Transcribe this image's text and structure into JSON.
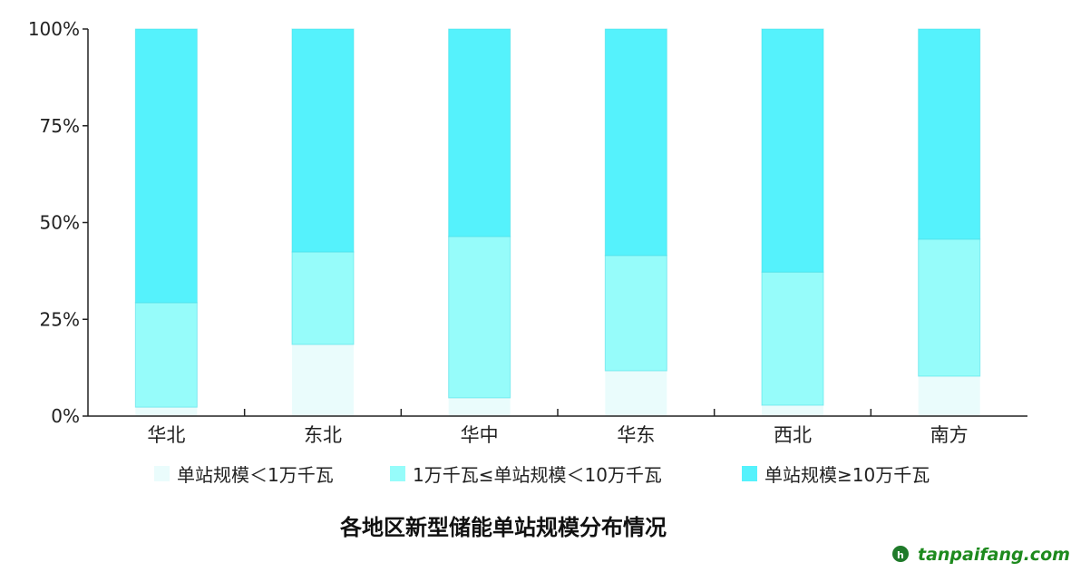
{
  "chart_data": {
    "type": "bar",
    "stacked": true,
    "title": "各地区新型储能单站规模分布情况",
    "xlabel": "",
    "ylabel": "",
    "ylim": [
      0,
      100
    ],
    "yticks": [
      "0%",
      "25%",
      "50%",
      "75%",
      "100%"
    ],
    "categories": [
      "华北",
      "东北",
      "华中",
      "华东",
      "西北",
      "南方"
    ],
    "series": [
      {
        "name": "单站规模＜1万千瓦",
        "color": "#EAFCFC",
        "values": [
          2.3,
          18.5,
          4.7,
          11.7,
          2.8,
          10.3
        ]
      },
      {
        "name": "1万千瓦≤单站规模＜10万千瓦",
        "color": "#96FCFA",
        "values": [
          27.0,
          23.9,
          41.7,
          29.8,
          34.4,
          35.4
        ]
      },
      {
        "name": "单站规模≥10万千瓦",
        "color": "#55F2FC",
        "values": [
          70.7,
          57.6,
          53.6,
          58.5,
          62.8,
          54.3
        ]
      }
    ],
    "legend_position": "bottom",
    "grid": false
  },
  "watermark": {
    "logo": "tanpaifang.com",
    "prefix": "tanpai",
    "suffix": "fang.com"
  }
}
